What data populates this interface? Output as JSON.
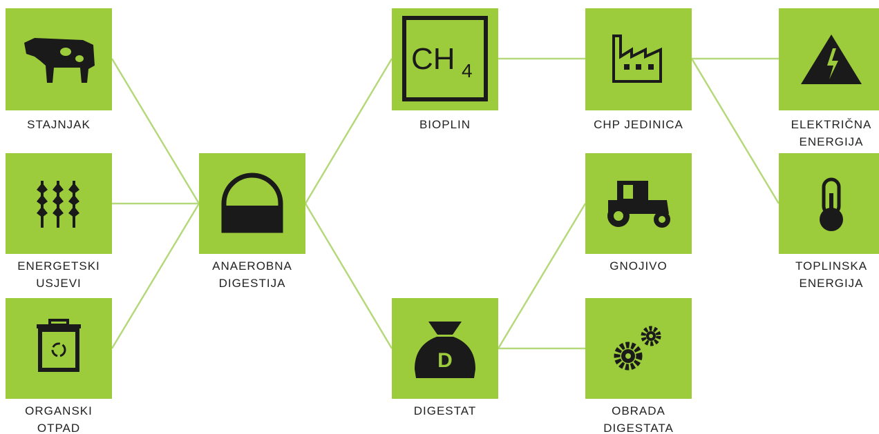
{
  "nodes": [
    {
      "label": [
        "STAJNJAK"
      ]
    },
    {
      "label": [
        "ENERGETSKI",
        "USJEVI"
      ]
    },
    {
      "label": [
        "ORGANSKI",
        "OTPAD"
      ]
    },
    {
      "label": [
        "ANAEROBNA",
        "DIGESTIJA"
      ]
    },
    {
      "label": [
        "BIOPLIN"
      ],
      "icon_text": "CH",
      "icon_sub": "4"
    },
    {
      "label": [
        "DIGESTAT"
      ],
      "icon_text": "D"
    },
    {
      "label": [
        "CHP JEDINICA"
      ]
    },
    {
      "label": [
        "GNOJIVO"
      ]
    },
    {
      "label": [
        "OBRADA",
        "DIGESTATA"
      ]
    },
    {
      "label": [
        "ELEKTRIČNA",
        "ENERGIJA"
      ]
    },
    {
      "label": [
        "TOPLINSKA",
        "ENERGIJA"
      ]
    }
  ]
}
